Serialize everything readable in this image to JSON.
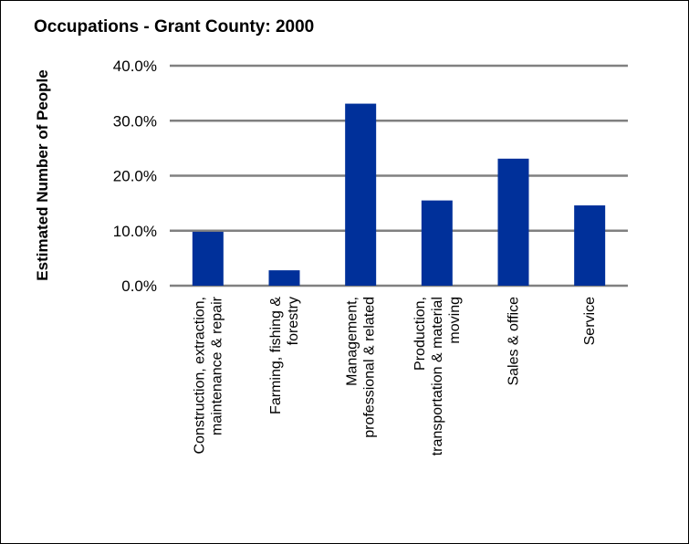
{
  "chart_data": {
    "type": "bar",
    "title": "Occupations - Grant County: 2000",
    "ylabel": "Estimated Number of People",
    "xlabel": "",
    "ylim": [
      0,
      40
    ],
    "yticks": [
      "0.0%",
      "10.0%",
      "20.0%",
      "30.0%",
      "40.0%"
    ],
    "categories": [
      [
        "Construction, extraction,",
        "maintenance & repair"
      ],
      [
        "Farming, fishing &",
        "forestry"
      ],
      [
        "Management,",
        "professional & related"
      ],
      [
        "Production,",
        "transportation & material",
        "moving"
      ],
      [
        "Sales & office"
      ],
      [
        "Service"
      ]
    ],
    "values": [
      9.8,
      2.8,
      33.1,
      15.5,
      23.1,
      14.6
    ],
    "grid": true,
    "colors": {
      "bar": "#00309a",
      "grid": "#808080",
      "axis": "#808080"
    }
  }
}
